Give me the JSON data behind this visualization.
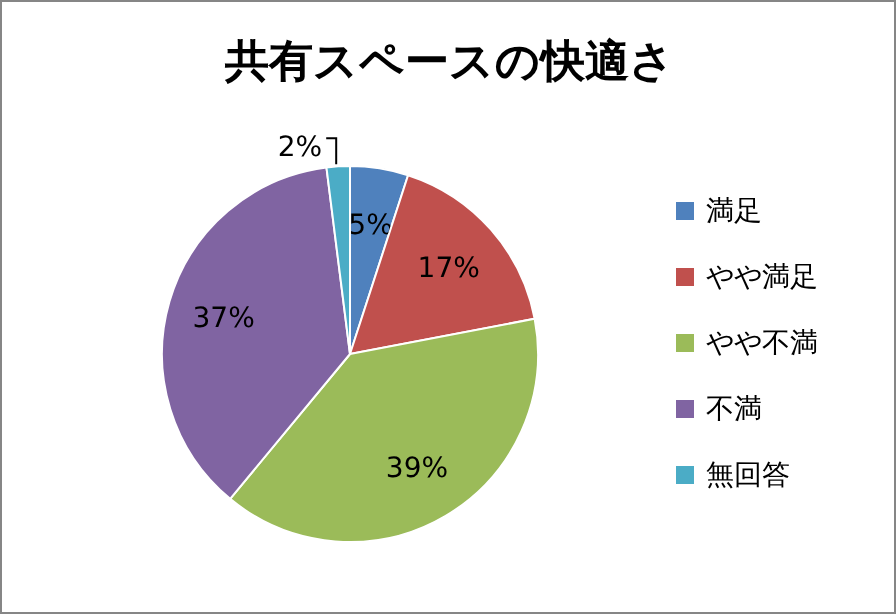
{
  "chart_data": {
    "type": "pie",
    "title": "共有スペースの快適さ",
    "categories": [
      "満足",
      "やや満足",
      "やや不満",
      "不満",
      "無回答"
    ],
    "values": [
      5,
      17,
      39,
      37,
      2
    ],
    "colors": [
      "#4f81bd",
      "#c0504d",
      "#9bbb59",
      "#8064a2",
      "#4bacc6"
    ],
    "value_labels": [
      "5%",
      "17%",
      "39%",
      "37%",
      "2%"
    ],
    "legend": "right"
  }
}
